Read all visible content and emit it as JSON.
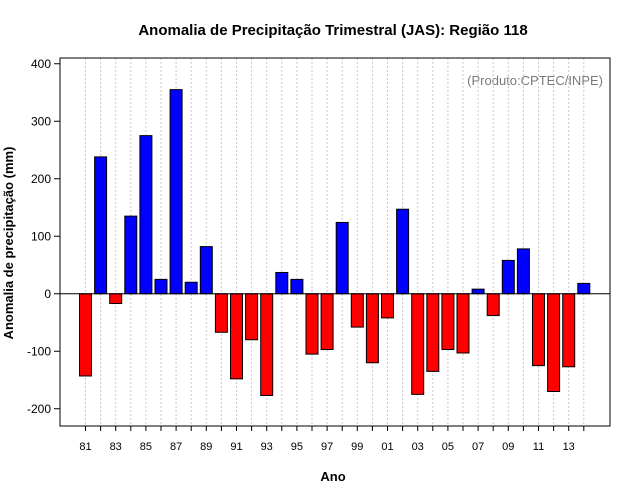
{
  "chart_data": {
    "type": "bar",
    "title": "Anomalia de Precipitação Trimestral (JAS): Região 118",
    "xlabel": "Ano",
    "ylabel": "Anomalia de precipitação (mm)",
    "annotation": "(Produto:CPTEC/INPE)",
    "ylim": [
      -230,
      410
    ],
    "yticks": [
      400,
      300,
      200,
      100,
      0,
      -100,
      -200
    ],
    "ytick_labels": [
      "400",
      "300",
      "200",
      "100",
      "0",
      "-100",
      "-200"
    ],
    "categories": [
      "81",
      "82",
      "83",
      "84",
      "85",
      "86",
      "87",
      "88",
      "89",
      "90",
      "91",
      "92",
      "93",
      "94",
      "95",
      "96",
      "97",
      "98",
      "99",
      "00",
      "01",
      "02",
      "03",
      "04",
      "05",
      "06",
      "07",
      "08",
      "09",
      "10",
      "11",
      "12",
      "13",
      "14"
    ],
    "xtick_labels": [
      "81",
      "83",
      "85",
      "87",
      "89",
      "91",
      "93",
      "95",
      "97",
      "99",
      "01",
      "03",
      "05",
      "07",
      "09",
      "11",
      "13"
    ],
    "values": [
      -143,
      238,
      -17,
      135,
      275,
      25,
      355,
      20,
      82,
      -67,
      -148,
      -80,
      -177,
      37,
      25,
      -105,
      -97,
      124,
      -58,
      -120,
      -42,
      147,
      -175,
      -135,
      -97,
      -103,
      8,
      -38,
      58,
      78,
      -125,
      -170,
      -127,
      18
    ],
    "positive_color": "#0000ff",
    "negative_color": "#ff0000",
    "grid": true
  }
}
